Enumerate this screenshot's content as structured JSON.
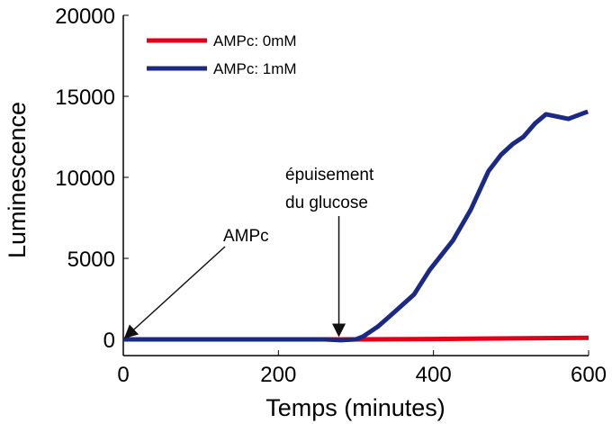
{
  "chart_data": {
    "type": "line",
    "title": "",
    "xlabel": "Temps (minutes)",
    "ylabel": "Luminescence",
    "xlim": [
      0,
      600
    ],
    "ylim": [
      0,
      20000
    ],
    "xticks": [
      0,
      200,
      400,
      600
    ],
    "yticks": [
      0,
      5000,
      10000,
      15000,
      20000
    ],
    "grid": false,
    "legend": "top-left",
    "series": [
      {
        "name": "AMPc: 0mM",
        "color": "#e2001a",
        "x": [
          0,
          100,
          200,
          300,
          400,
          500,
          600
        ],
        "y": [
          0,
          0,
          0,
          0,
          20,
          60,
          100
        ]
      },
      {
        "name": "AMPc: 1mM",
        "color": "#1a2a84",
        "x": [
          0,
          100,
          200,
          260,
          280,
          300,
          309,
          328,
          350,
          375,
          395,
          425,
          448,
          471,
          487,
          502,
          516,
          531,
          545,
          574,
          599
        ],
        "y": [
          0,
          0,
          0,
          0,
          -50,
          0,
          170,
          780,
          1700,
          2780,
          4280,
          6100,
          8000,
          10390,
          11390,
          12050,
          12500,
          13330,
          13890,
          13610,
          14060
        ]
      }
    ],
    "annotations": [
      {
        "text": "AMPc",
        "x": 0,
        "y": 0
      },
      {
        "text": [
          "épuisement",
          "du glucose"
        ],
        "x": 278,
        "y": 0
      }
    ]
  }
}
